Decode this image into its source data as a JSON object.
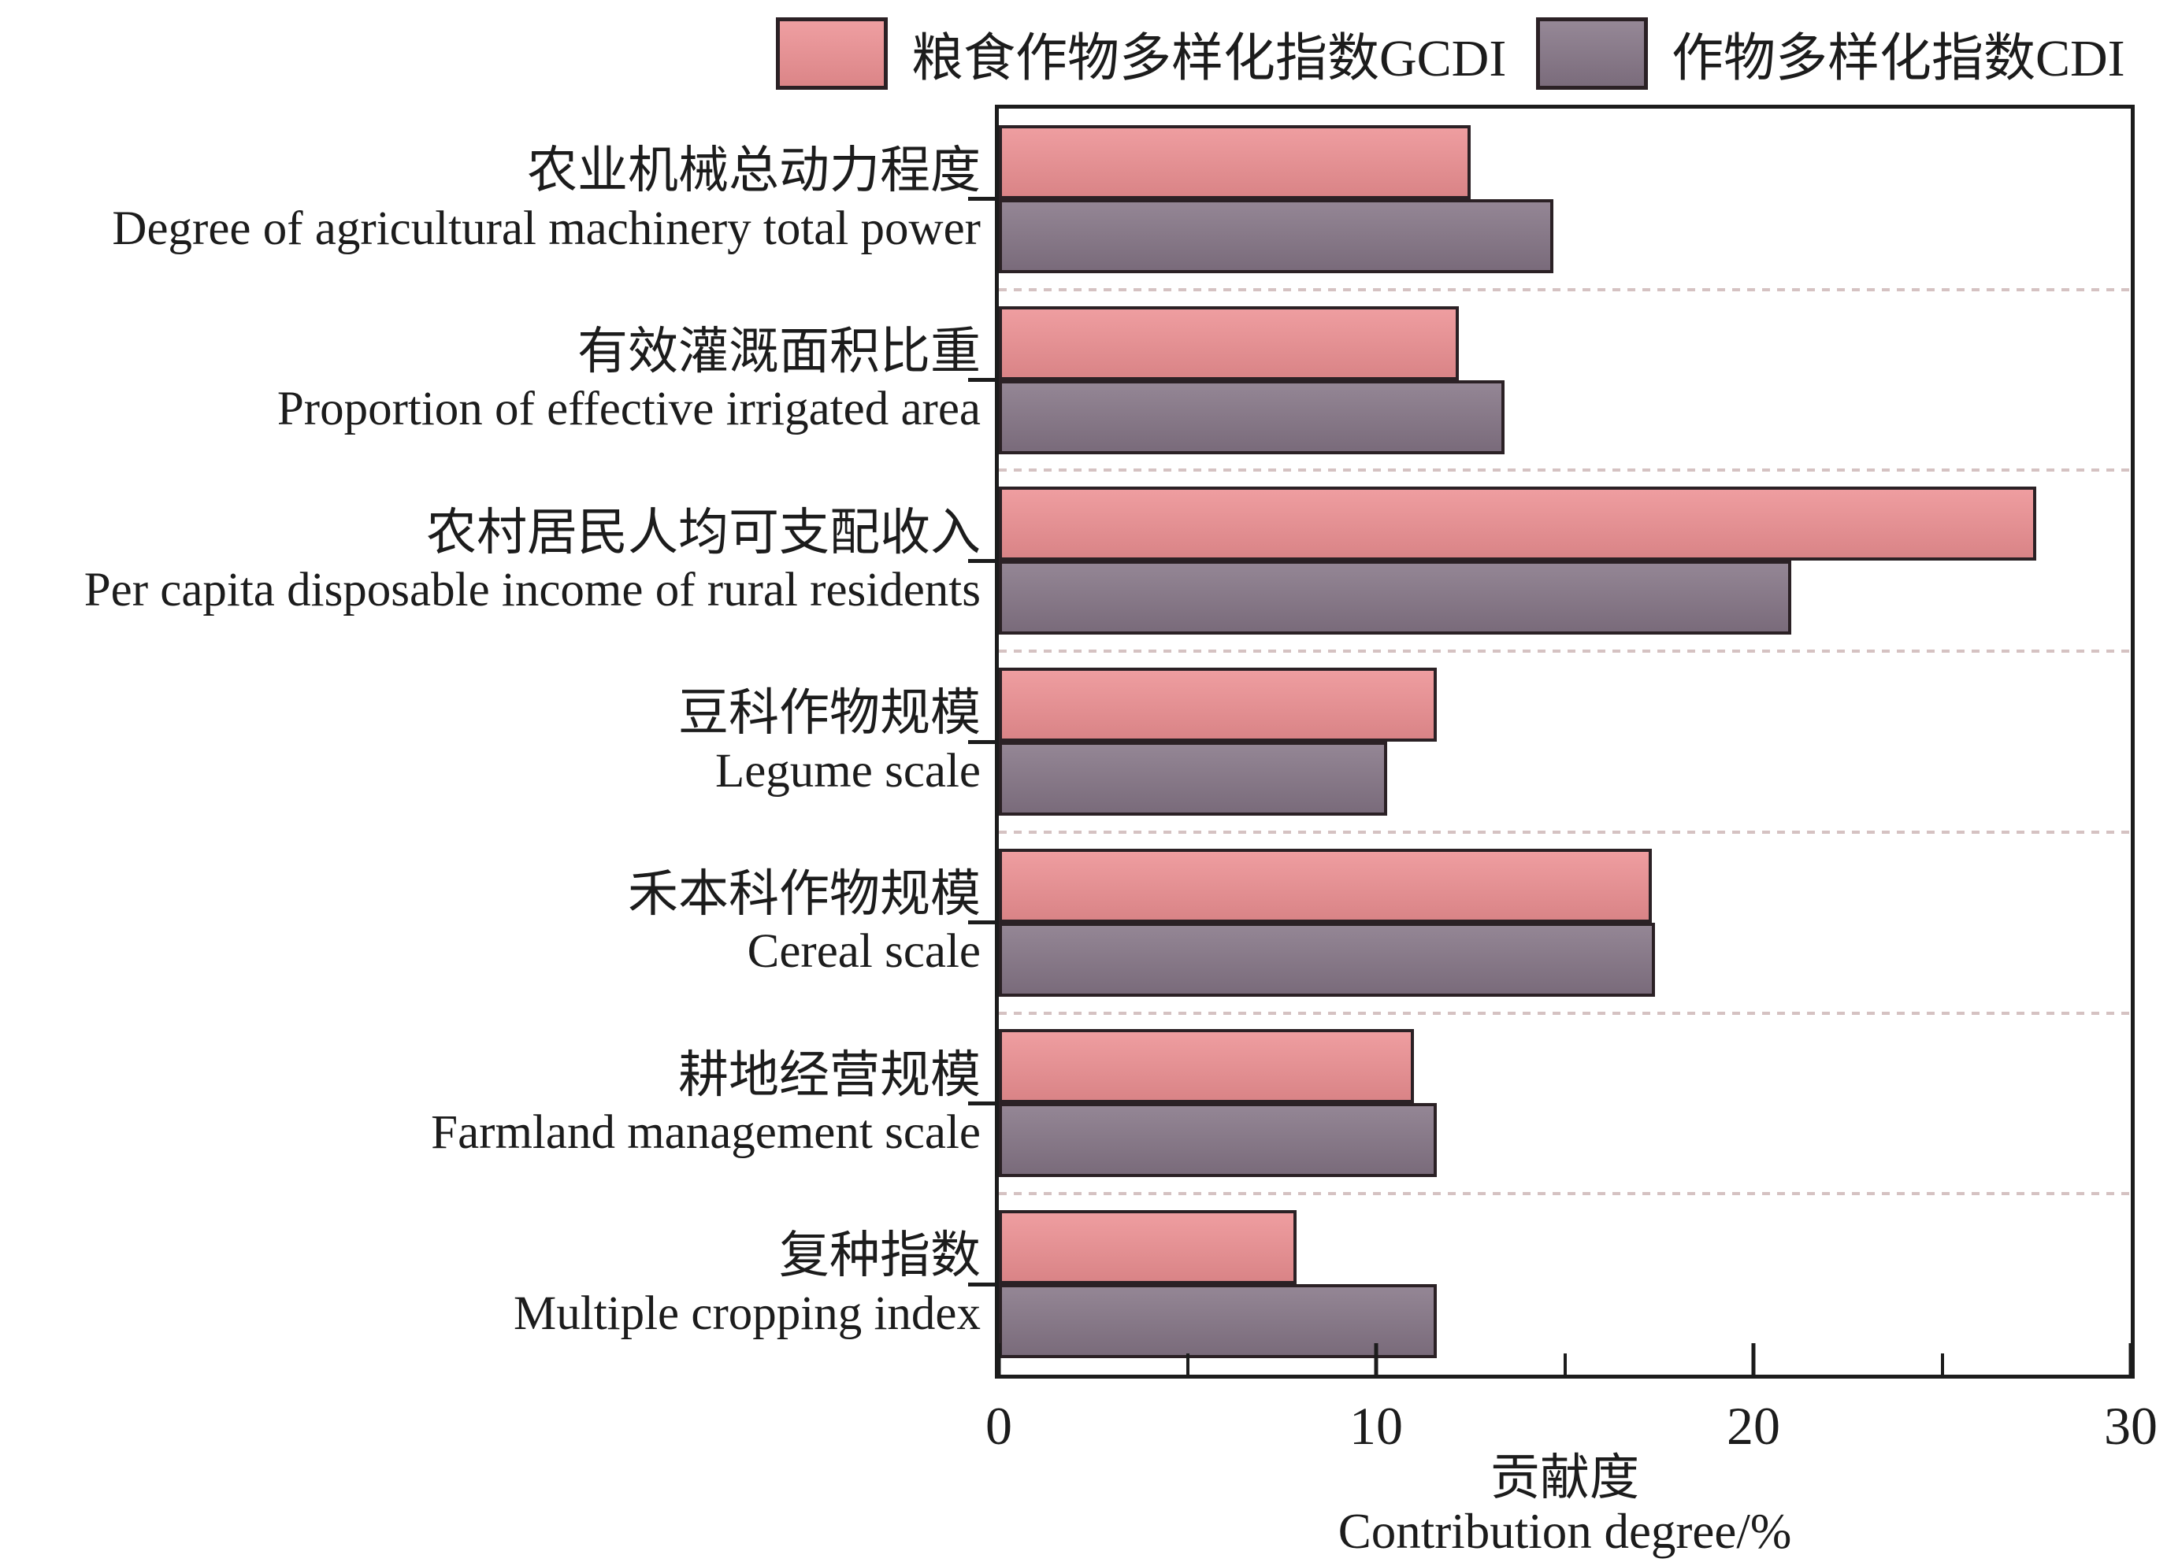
{
  "legend": [
    {
      "label": "粮食作物多样化指数GCDI",
      "color": "#ec8f92"
    },
    {
      "label": "作物多样化指数CDI",
      "color": "#847485"
    }
  ],
  "chart_data": {
    "type": "bar",
    "orientation": "horizontal",
    "title": "",
    "xlabel_zh": "贡献度",
    "xlabel_en": "Contribution degree/%",
    "xlim": [
      0,
      30
    ],
    "xticks": [
      0,
      10,
      20,
      30
    ],
    "minor_xticks": [
      5,
      15,
      25
    ],
    "grid": "dashed horizontal separators between category groups",
    "legend_position": "top",
    "categories": [
      {
        "zh": "农业机械总动力程度",
        "en": "Degree of agricultural machinery total power"
      },
      {
        "zh": "有效灌溉面积比重",
        "en": "Proportion of effective irrigated area"
      },
      {
        "zh": "农村居民人均可支配收入",
        "en": "Per capita disposable income of rural residents"
      },
      {
        "zh": "豆科作物规模",
        "en": "Legume scale"
      },
      {
        "zh": "禾本科作物规模",
        "en": "Cereal scale"
      },
      {
        "zh": "耕地经营规模",
        "en": "Farmland management scale"
      },
      {
        "zh": "复种指数",
        "en": "Multiple cropping index"
      }
    ],
    "series": [
      {
        "name": "粮食作物多样化指数GCDI",
        "color": "#ec8f92",
        "values": [
          12.5,
          12.2,
          27.5,
          11.6,
          17.3,
          11.0,
          7.9
        ]
      },
      {
        "name": "作物多样化指数CDI",
        "color": "#847485",
        "values": [
          14.7,
          13.4,
          21.0,
          10.3,
          17.4,
          11.6,
          11.6
        ]
      }
    ],
    "colors": {
      "bar_border": "#2b2125",
      "axis": "#1c1c1c",
      "grid": "#d5c2c2",
      "text": "#1c1c1c"
    }
  }
}
